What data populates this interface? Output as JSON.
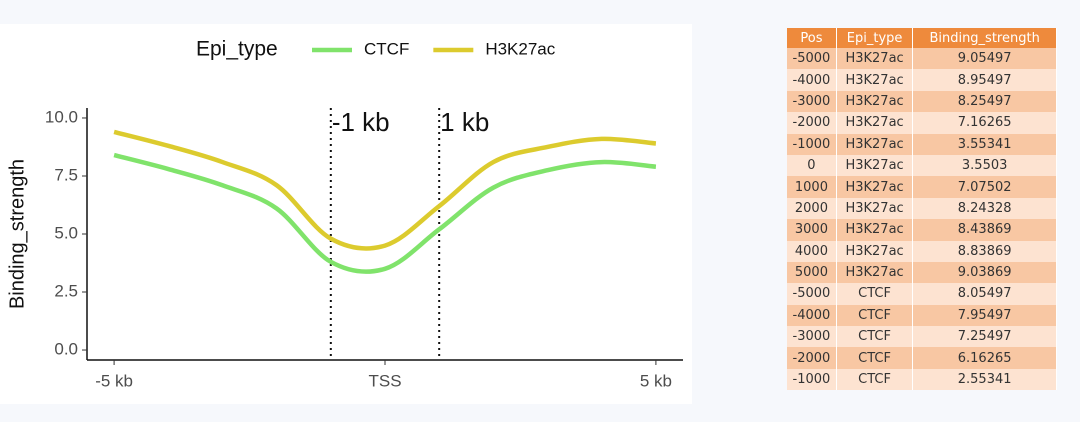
{
  "chart_data": {
    "type": "line",
    "legend_title": "Epi_type",
    "y_label": "Binding_strength",
    "x": [
      -5000,
      -4000,
      -3000,
      -2000,
      -1000,
      0,
      1000,
      2000,
      3000,
      4000,
      5000
    ],
    "series": [
      {
        "name": "CTCF",
        "color": "#80e36b",
        "values": [
          8.4,
          7.8,
          7.1,
          6.1,
          3.8,
          3.5,
          5.2,
          7.0,
          7.75,
          8.1,
          7.9
        ]
      },
      {
        "name": "H3K27ac",
        "color": "#dccb2e",
        "values": [
          9.4,
          8.8,
          8.1,
          7.1,
          4.8,
          4.5,
          6.2,
          8.1,
          8.75,
          9.1,
          8.9
        ]
      }
    ],
    "xlim": [
      -5500,
      5500
    ],
    "xticks": [
      {
        "value": -5000,
        "label": "-5 kb"
      },
      {
        "value": 0,
        "label": "TSS"
      },
      {
        "value": 5000,
        "label": "5 kb"
      }
    ],
    "ylim": [
      -0.43,
      10.43
    ],
    "yticks": [
      {
        "value": 0,
        "label": "0.0"
      },
      2.5,
      {
        "value": 5,
        "label": "5.0"
      },
      7.5,
      {
        "value": 10,
        "label": "10.0"
      }
    ],
    "vlines": [
      {
        "x": -1000,
        "label": "-1 kb"
      },
      {
        "x": 1000,
        "label": "1 kb"
      }
    ],
    "legend_position": "top"
  },
  "table": {
    "columns": [
      "Pos",
      "Epi_type",
      "Binding_strength"
    ],
    "rows": [
      [
        "-5000",
        "H3K27ac",
        "9.05497"
      ],
      [
        "-4000",
        "H3K27ac",
        "8.95497"
      ],
      [
        "-3000",
        "H3K27ac",
        "8.25497"
      ],
      [
        "-2000",
        "H3K27ac",
        "7.16265"
      ],
      [
        "-1000",
        "H3K27ac",
        "3.55341"
      ],
      [
        "0",
        "H3K27ac",
        "3.5503"
      ],
      [
        "1000",
        "H3K27ac",
        "7.07502"
      ],
      [
        "2000",
        "H3K27ac",
        "8.24328"
      ],
      [
        "3000",
        "H3K27ac",
        "8.43869"
      ],
      [
        "4000",
        "H3K27ac",
        "8.83869"
      ],
      [
        "5000",
        "H3K27ac",
        "9.03869"
      ],
      [
        "-5000",
        "CTCF",
        "8.05497"
      ],
      [
        "-4000",
        "CTCF",
        "7.95497"
      ],
      [
        "-3000",
        "CTCF",
        "7.25497"
      ],
      [
        "-2000",
        "CTCF",
        "6.16265"
      ],
      [
        "-1000",
        "CTCF",
        "2.55341"
      ]
    ]
  }
}
